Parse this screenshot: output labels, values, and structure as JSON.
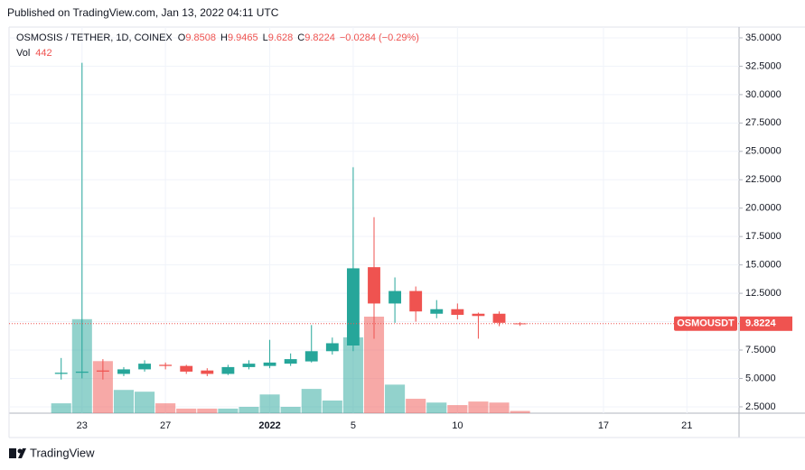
{
  "header": {
    "published": "Published on TradingView.com, Jan 13, 2022 04:11 UTC"
  },
  "footer": {
    "brand": "TradingView"
  },
  "chart_data": {
    "type": "candlestick",
    "symbol": "OSMOSIS / TETHER, 1D, COINEX",
    "ohlc_labels": [
      "O",
      "H",
      "L",
      "C"
    ],
    "change": "−0.0284 (−0.29%)",
    "volume_label": "Vol",
    "ticker": "OSMOUSDT",
    "categories": [
      null,
      null,
      null,
      "23",
      null,
      null,
      null,
      "27",
      null,
      null,
      null,
      null,
      "2022",
      null,
      null,
      null,
      "5",
      null,
      null,
      null,
      null,
      "10",
      null,
      null,
      null,
      null,
      null,
      null,
      "17",
      null,
      null,
      null,
      "21",
      null,
      null
    ],
    "open": [
      null,
      null,
      5.4,
      5.5,
      5.7,
      5.4,
      5.8,
      6.2,
      6.1,
      5.7,
      5.4,
      6.0,
      6.1,
      6.3,
      6.5,
      7.4,
      7.9,
      14.8,
      11.6,
      12.7,
      10.7,
      11.1,
      10.7,
      10.7,
      9.8508,
      null,
      null,
      null,
      null,
      null,
      null,
      null,
      null,
      null,
      null
    ],
    "high": [
      null,
      null,
      6.8,
      32.8,
      6.7,
      6.0,
      6.6,
      6.4,
      6.2,
      5.9,
      6.2,
      6.6,
      8.4,
      7.2,
      9.7,
      8.6,
      23.6,
      19.2,
      13.9,
      13.1,
      11.9,
      11.6,
      10.8,
      10.9,
      9.9465,
      null,
      null,
      null,
      null,
      null,
      null,
      null,
      null,
      null,
      null
    ],
    "low": [
      null,
      null,
      4.9,
      5.0,
      4.9,
      5.2,
      5.6,
      5.8,
      5.4,
      5.2,
      5.3,
      5.8,
      5.9,
      6.1,
      6.4,
      7.1,
      7.4,
      8.5,
      9.9,
      10.0,
      10.3,
      10.2,
      8.5,
      9.6,
      9.628,
      null,
      null,
      null,
      null,
      null,
      null,
      null,
      null,
      null,
      null
    ],
    "close": [
      null,
      null,
      5.5,
      5.6,
      5.6,
      5.8,
      6.3,
      6.1,
      5.6,
      5.4,
      6.0,
      6.3,
      6.4,
      6.7,
      7.4,
      8.1,
      14.7,
      11.6,
      12.7,
      10.9,
      11.1,
      10.6,
      10.5,
      9.9,
      9.8224,
      null,
      null,
      null,
      null,
      null,
      null,
      null,
      null,
      null,
      null
    ],
    "volume": [
      null,
      null,
      1950,
      18600,
      10300,
      4600,
      4250,
      1950,
      900,
      900,
      900,
      1250,
      3700,
      1250,
      4800,
      2500,
      15000,
      19100,
      5650,
      2850,
      2100,
      1600,
      2300,
      2100,
      442,
      null,
      null,
      null,
      null,
      null,
      null,
      null,
      null,
      null,
      null
    ],
    "up_color": "#26a69a",
    "down_color": "#ef5350",
    "ylim": [
      1.94,
      35.95
    ],
    "yticks": [
      {
        "value": 2.5,
        "label": "2.5000"
      },
      {
        "value": 5,
        "label": "5.0000"
      },
      {
        "value": 7.5,
        "label": "7.5000"
      },
      {
        "value": 10,
        "label": "10.0000"
      },
      {
        "value": 12.5,
        "label": "12.5000"
      },
      {
        "value": 15,
        "label": "15.0000"
      },
      {
        "value": 17.5,
        "label": "17.5000"
      },
      {
        "value": 20,
        "label": "20.0000"
      },
      {
        "value": 22.5,
        "label": "22.5000"
      },
      {
        "value": 25,
        "label": "25.0000"
      },
      {
        "value": 27.5,
        "label": "27.5000"
      },
      {
        "value": 30,
        "label": "30.0000"
      },
      {
        "value": 32.5,
        "label": "32.5000"
      },
      {
        "value": 35,
        "label": "35.0000"
      }
    ],
    "grid": true
  }
}
